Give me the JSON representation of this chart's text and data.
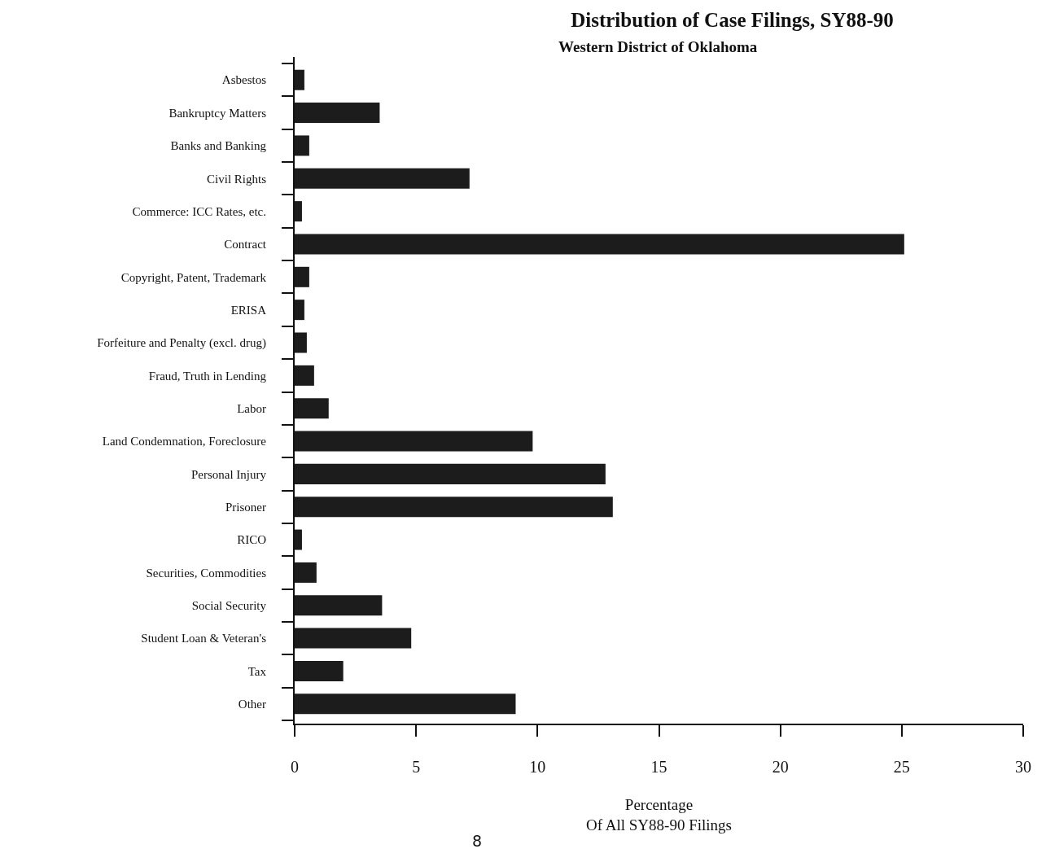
{
  "chart_data": {
    "type": "bar",
    "orientation": "horizontal",
    "title": "Distribution of Case Filings, SY88-90",
    "subtitle": "Western District of Oklahoma",
    "xlabel": "Percentage\nOf All SY88-90 Filings",
    "categories": [
      "Asbestos",
      "Bankruptcy Matters",
      "Banks and Banking",
      "Civil Rights",
      "Commerce: ICC Rates, etc.",
      "Contract",
      "Copyright, Patent, Trademark",
      "ERISA",
      "Forfeiture and Penalty (excl. drug)",
      "Fraud, Truth in Lending",
      "Labor",
      "Land Condemnation, Foreclosure",
      "Personal Injury",
      "Prisoner",
      "RICO",
      "Securities, Commodities",
      "Social Security",
      "Student Loan & Veteran's",
      "Tax",
      "Other"
    ],
    "values": [
      0.4,
      3.5,
      0.6,
      7.2,
      0.3,
      25.1,
      0.6,
      0.4,
      0.5,
      0.8,
      1.4,
      9.8,
      12.8,
      13.1,
      0.3,
      0.9,
      3.6,
      4.8,
      2.0,
      9.1
    ],
    "color": "#1c1c1c",
    "xlim": [
      0,
      30
    ],
    "xticks": [
      0,
      5,
      10,
      15,
      20,
      25,
      30
    ],
    "grid": false,
    "legend": false,
    "annotations": [
      "8"
    ]
  }
}
